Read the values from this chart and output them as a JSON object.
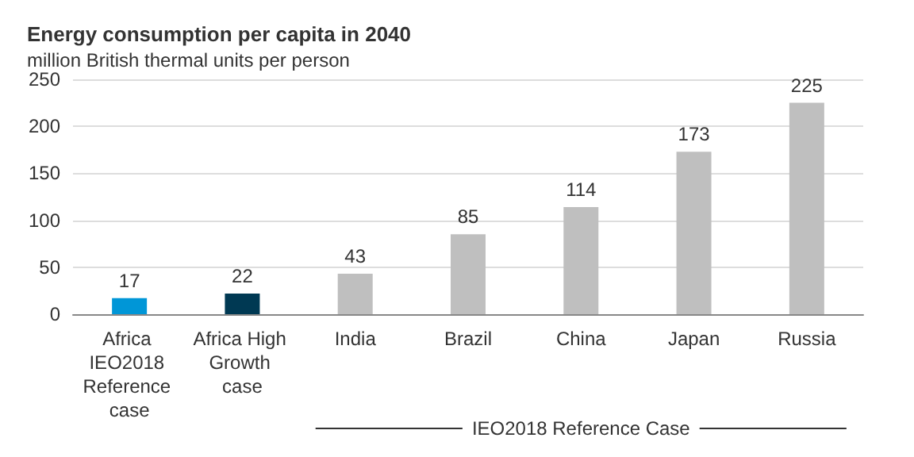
{
  "chart_data": {
    "type": "bar",
    "title": "Energy consumption per capita in 2040",
    "subtitle": "million British thermal units per person",
    "categories": [
      "Africa IEO2018 Reference case",
      "Africa High Growth case",
      "India",
      "Brazil",
      "China",
      "Japan",
      "Russia"
    ],
    "values": [
      17,
      22,
      43,
      85,
      114,
      173,
      225
    ],
    "colors": [
      "#0096d7",
      "#003953",
      "#bfbfbf",
      "#bfbfbf",
      "#bfbfbf",
      "#bfbfbf",
      "#bfbfbf"
    ],
    "ylim": [
      0,
      250
    ],
    "yticks": [
      0,
      50,
      100,
      150,
      200,
      250
    ],
    "grid": "y",
    "data_labels": true,
    "annotations": [
      "IEO2018 Reference Case"
    ]
  }
}
